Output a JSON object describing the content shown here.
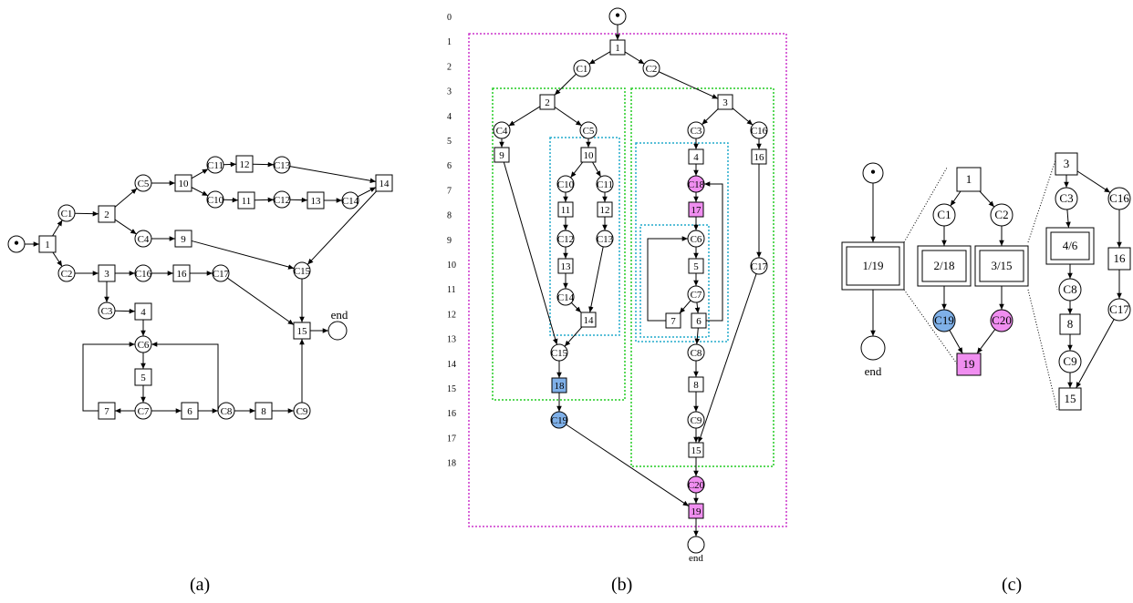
{
  "captions": {
    "a": "(a)",
    "b": "(b)",
    "c": "(c)"
  },
  "colors": {
    "stroke": "#000000",
    "blue_fill": "#7fb0e8",
    "pink_fill": "#f08ef0",
    "outer_region": "#cc33cc",
    "green_region": "#22cc22",
    "cyan_region": "#22aacc"
  },
  "panel_a": {
    "start_token": "•",
    "labels": {
      "t1": "1",
      "t2": "2",
      "t3": "3",
      "t4": "4",
      "t5": "5",
      "t6": "6",
      "t7": "7",
      "t8": "8",
      "t9": "9",
      "t10": "10",
      "t11": "11",
      "t12": "12",
      "t13": "13",
      "t14": "14",
      "t15": "15",
      "t16": "16",
      "c1": "C1",
      "c2": "C2",
      "c3": "C3",
      "c4": "C4",
      "c5": "C5",
      "c6": "C6",
      "c7": "C7",
      "c8": "C8",
      "c9": "C9",
      "c10": "C10",
      "c11": "C11",
      "c12": "C12",
      "c13": "C13",
      "c14": "C14",
      "c15": "C15",
      "c16": "C16",
      "c17": "C17",
      "end": "end"
    }
  },
  "panel_b": {
    "levels": [
      "0",
      "1",
      "2",
      "3",
      "4",
      "5",
      "6",
      "7",
      "8",
      "9",
      "10",
      "11",
      "12",
      "13",
      "14",
      "15",
      "16",
      "17",
      "18"
    ],
    "start_token": "•",
    "labels": {
      "t1": "1",
      "t2": "2",
      "t3": "3",
      "t4": "4",
      "t5": "5",
      "t6": "6",
      "t7": "7",
      "t8": "8",
      "t9": "9",
      "t10": "10",
      "t11": "11",
      "t12": "12",
      "t13": "13",
      "t14": "14",
      "t15": "15",
      "t16": "16",
      "t17": "17",
      "t18": "18",
      "t19": "19",
      "c1": "C1",
      "c2": "C2",
      "c3": "C3",
      "c4": "C4",
      "c5": "C5",
      "c6": "C6",
      "c7": "C7",
      "c8": "C8",
      "c9": "C9",
      "c10": "C10",
      "c11": "C11",
      "c12": "C12",
      "c13": "C13",
      "c14": "C14",
      "c15": "C15",
      "c16": "C16",
      "c17": "C17",
      "c18": "C18",
      "c19": "C19",
      "c20": "C20",
      "end": "end"
    }
  },
  "panel_c": {
    "start_token": "•",
    "labels": {
      "r1": "1/19",
      "end": "end",
      "t1": "1",
      "c1": "C1",
      "c2": "C2",
      "r2": "2/18",
      "r3": "3/15",
      "c19": "C19",
      "c20": "C20",
      "t19": "19",
      "t3": "3",
      "c3": "C3",
      "c16": "C16",
      "r4": "4/6",
      "t16": "16",
      "c8": "C8",
      "c17": "C17",
      "t8": "8",
      "c9": "C9",
      "t15": "15"
    }
  }
}
